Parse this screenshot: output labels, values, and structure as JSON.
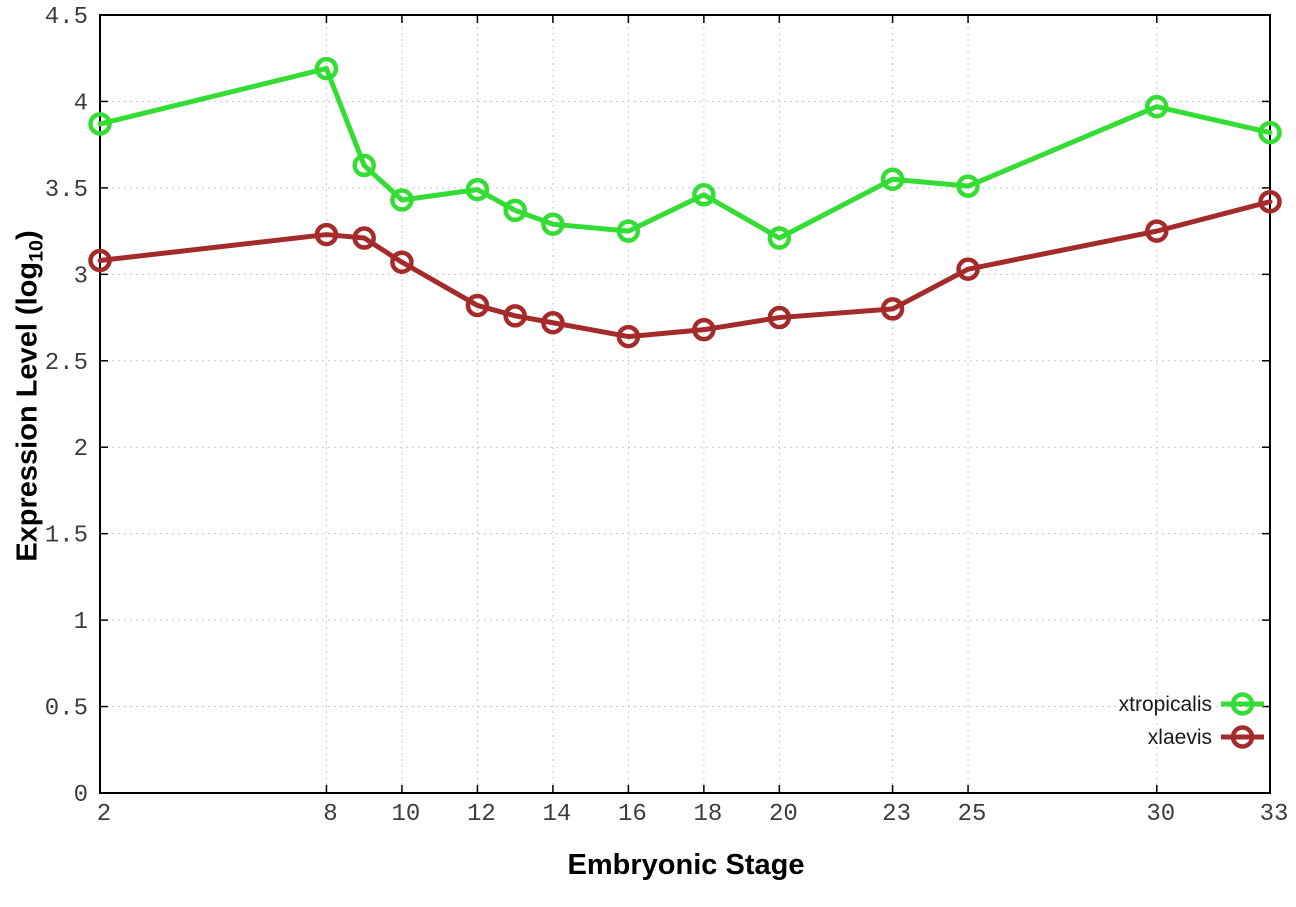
{
  "chart_data": {
    "type": "line",
    "x": [
      2,
      8,
      9,
      10,
      12,
      13,
      14,
      16,
      18,
      20,
      23,
      25,
      30,
      33
    ],
    "series": [
      {
        "name": "xtropicalis",
        "color": "#33dd33",
        "values": [
          3.87,
          4.19,
          3.63,
          3.43,
          3.49,
          3.37,
          3.29,
          3.25,
          3.46,
          3.21,
          3.55,
          3.51,
          3.97,
          3.82
        ]
      },
      {
        "name": "xlaevis",
        "color": "#a52a2a",
        "values": [
          3.08,
          3.23,
          3.21,
          3.07,
          2.82,
          2.76,
          2.72,
          2.64,
          2.68,
          2.75,
          2.8,
          3.03,
          3.25,
          3.42
        ]
      }
    ],
    "title": "",
    "xlabel": "Embryonic Stage",
    "ylabel": "Expression Level (log10)",
    "ylabel_parts": {
      "main": "Expression Level (log",
      "sub": "10",
      "close": ")"
    },
    "x_ticks": [
      2,
      8,
      10,
      12,
      14,
      16,
      18,
      20,
      23,
      25,
      30,
      33
    ],
    "y_ticks": [
      0,
      0.5,
      1,
      1.5,
      2,
      2.5,
      3,
      3.5,
      4,
      4.5
    ],
    "xlim": [
      2,
      33
    ],
    "ylim": [
      0,
      4.5
    ],
    "grid": true,
    "legend_position": "bottom-right",
    "colors": {
      "border": "#000000",
      "grid": "#c8c8c8",
      "tick_label": "#3d3d3d",
      "legend_text": "#1a1a1a",
      "background": "#ffffff"
    }
  }
}
